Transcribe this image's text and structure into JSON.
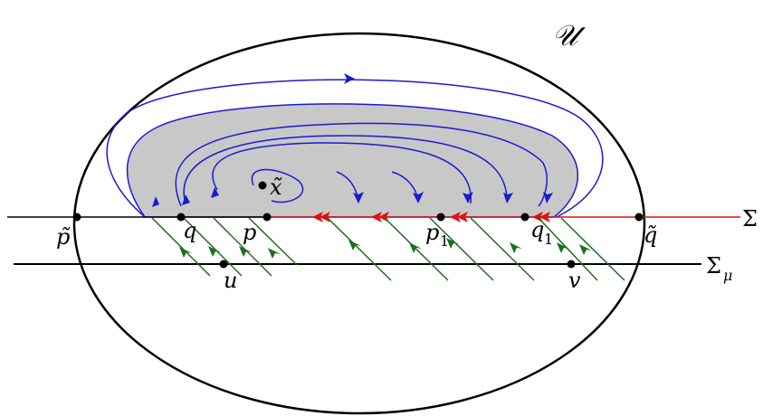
{
  "labels": {
    "region": "𝒰",
    "sigma": "Σ",
    "sigma_mu": "Σ",
    "sigma_mu_sub": "μ",
    "p_tilde": "p̃",
    "q": "q",
    "p": "p",
    "x_tilde": "x̃",
    "p1": "p",
    "p1_sub": "1",
    "q1": "q",
    "q1_sub": "1",
    "q_tilde": "q̃",
    "u": "u",
    "v": "v"
  },
  "colors": {
    "boundary": "#000000",
    "orbit": "#1a1ad6",
    "sliding_segment": "#e01010",
    "transversal_flow": "#1e6e1e",
    "shaded_region": "#c8c8c8"
  }
}
